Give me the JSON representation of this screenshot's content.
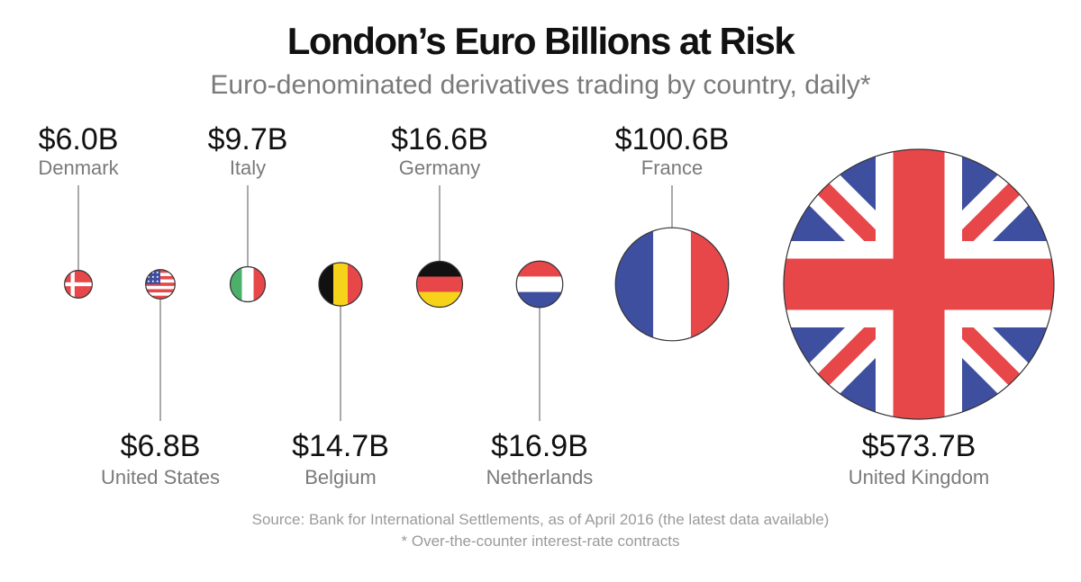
{
  "chart_data": {
    "type": "bubble",
    "title": "London’s Euro Billions at Risk",
    "subtitle": "Euro-denominated derivatives trading by country, daily*",
    "unit": "USD billions",
    "categories": [
      "Denmark",
      "United States",
      "Italy",
      "Belgium",
      "Germany",
      "Netherlands",
      "France",
      "United Kingdom"
    ],
    "values": [
      6.0,
      6.8,
      9.7,
      14.7,
      16.6,
      16.9,
      100.6,
      573.7
    ],
    "value_labels": [
      "$6.0B",
      "$6.8B",
      "$9.7B",
      "$14.7B",
      "$16.6B",
      "$16.9B",
      "$100.6B",
      "$573.7B"
    ],
    "label_side": [
      "top",
      "bottom",
      "top",
      "bottom",
      "top",
      "bottom",
      "top",
      "bottom"
    ],
    "flags": [
      "denmark-flag",
      "united-states-flag",
      "italy-flag",
      "belgium-flag",
      "germany-flag",
      "netherlands-flag",
      "france-flag",
      "united-kingdom-flag"
    ]
  },
  "source": "Source: Bank for International Settlements, as of April 2016 (the latest data available)",
  "footnote": "* Over-the-counter interest-rate contracts",
  "colors": {
    "red": "#e8474a",
    "blue": "#3f4fa0",
    "green": "#4caf6a",
    "black": "#111111",
    "yellow": "#f6d21b",
    "label": "#7a7a7a"
  }
}
